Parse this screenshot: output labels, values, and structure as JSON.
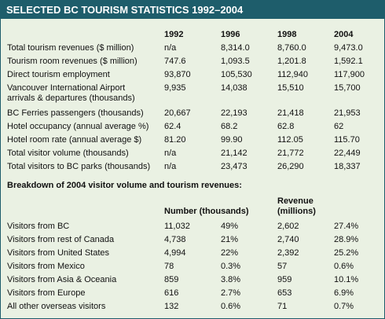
{
  "header": {
    "title": "SELECTED BC TOURISM STATISTICS 1992–2004"
  },
  "table1": {
    "columns": [
      "1992",
      "1996",
      "1998",
      "2004"
    ],
    "rows": [
      [
        "Total tourism revenues ($ million)",
        "n/a",
        "8,314.0",
        "8,760.0",
        "9,473.0"
      ],
      [
        "Tourism room revenues ($ million)",
        "747.6",
        "1,093.5",
        "1,201.8",
        "1,592.1"
      ],
      [
        "Direct tourism employment",
        "93,870",
        "105,530",
        "112,940",
        "117,900"
      ],
      [
        "Vancouver International Airport\narrivals & departures (thousands)",
        "9,935",
        "14,038",
        "15,510",
        "15,700"
      ],
      [
        "BC Ferries passengers (thousands)",
        "20,667",
        "22,193",
        "21,418",
        "21,953"
      ],
      [
        "Hotel occupancy (annual average %)",
        "62.4",
        "68.2",
        "62.8",
        "62"
      ],
      [
        "Hotel room rate (annual average $)",
        "81.20",
        "99.90",
        "112.05",
        "115.70"
      ],
      [
        "Total visitor volume (thousands)",
        "n/a",
        "21,142",
        "21,772",
        "22,449"
      ],
      [
        "Total visitors to BC parks (thousands)",
        "n/a",
        "23,473",
        "26,290",
        "18,337"
      ]
    ]
  },
  "table2": {
    "title": "Breakdown of 2004 visitor volume and tourism revenues:",
    "column_groups": [
      "Number (thousands)",
      "Revenue\n(millions)"
    ],
    "rows": [
      [
        "Visitors from BC",
        "11,032",
        "49%",
        "2,602",
        "27.4%"
      ],
      [
        "Visitors from rest of Canada",
        "4,738",
        "21%",
        "2,740",
        "28.9%"
      ],
      [
        "Visitors from United States",
        "4,994",
        "22%",
        "2,392",
        "25.2%"
      ],
      [
        "Visitors from Mexico",
        "78",
        "0.3%",
        "57",
        "0.6%"
      ],
      [
        "Visitors from Asia & Oceania",
        "859",
        "3.8%",
        "959",
        "10.1%"
      ],
      [
        "Visitors from Europe",
        "616",
        "2.7%",
        "653",
        "6.9%"
      ],
      [
        "All other overseas visitors",
        "132",
        "0.6%",
        "71",
        "0.7%"
      ]
    ]
  }
}
